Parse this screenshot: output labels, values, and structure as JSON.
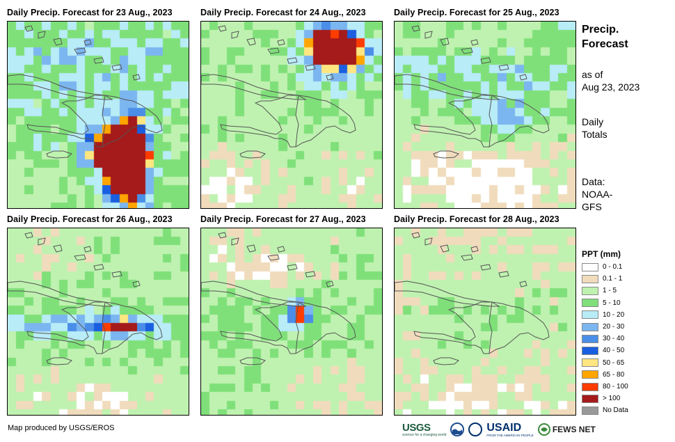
{
  "panels": [
    {
      "title": "Daily Precip. Forecast for 23 Aug., 2023",
      "key": "d23"
    },
    {
      "title": "Daily Precip. Forecast for 24 Aug., 2023",
      "key": "d24"
    },
    {
      "title": "Daily Precip. Forecast for 25 Aug., 2023",
      "key": "d25"
    },
    {
      "title": "Daily Precip. Forecast for 26 Aug., 2023",
      "key": "d26"
    },
    {
      "title": "Daily Precip. Forecast for 27 Aug., 2023",
      "key": "d27"
    },
    {
      "title": "Daily Precip. Forecast for 28 Aug., 2023",
      "key": "d28"
    }
  ],
  "sidebar": {
    "title_line1": "Precip.",
    "title_line2": "Forecast",
    "asof_line1": "as of",
    "asof_line2": "Aug 23, 2023",
    "totals_line1": "Daily",
    "totals_line2": "Totals",
    "data_line1": "Data:",
    "data_line2": "NOAA-",
    "data_line3": "GFS"
  },
  "legend": {
    "title": "PPT (mm)",
    "items": [
      {
        "label": "0 - 0.1",
        "color": "#ffffff"
      },
      {
        "label": "0.1 - 1",
        "color": "#f0dcbc"
      },
      {
        "label": "1 - 5",
        "color": "#bff2b0"
      },
      {
        "label": "5 - 10",
        "color": "#7fe07a"
      },
      {
        "label": "10 - 20",
        "color": "#b8ecf7"
      },
      {
        "label": "20 - 30",
        "color": "#7bb6f0"
      },
      {
        "label": "30 - 40",
        "color": "#4a8ee8"
      },
      {
        "label": "40 - 50",
        "color": "#1a5fe0"
      },
      {
        "label": "50 - 65",
        "color": "#ffe680"
      },
      {
        "label": "65 - 80",
        "color": "#ffa500"
      },
      {
        "label": "80 - 100",
        "color": "#ff3c00"
      },
      {
        "label": "> 100",
        "color": "#a51a1a"
      },
      {
        "label": "No Data",
        "color": "#999999"
      }
    ]
  },
  "footer": {
    "credit": "Map produced by USGS/EROS",
    "logo_usgs": "USGS",
    "logo_usgs_tag": "science for a changing world",
    "logo_usaid": "USAID",
    "logo_usaid_tag": "FROM THE AMERICAN PEOPLE",
    "logo_fews": "FEWS NET"
  }
}
